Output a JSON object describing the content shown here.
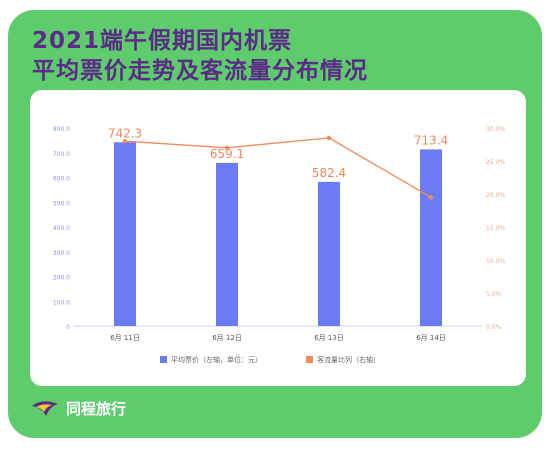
{
  "title_line1": "2021端午假期国内机票",
  "title_line2": "平均票价走势及客流量分布情况",
  "brand": "同程旅行",
  "colors": {
    "frame": "#5ecb6c",
    "title": "#5b2c87",
    "bar": "#6b7bf2",
    "line": "#f08a5d",
    "axis_left": "#8b95e8",
    "axis_right": "#f2a98a"
  },
  "chart_data": {
    "type": "bar",
    "categories": [
      "6月 11日",
      "6月 12日",
      "6月 13日",
      "6月 14日"
    ],
    "series": [
      {
        "name": "平均票价（左轴，单位：元）",
        "type": "bar",
        "axis": "left",
        "values": [
          742.3,
          659.1,
          582.4,
          713.4
        ],
        "data_labels": [
          "742.3",
          "659.1",
          "582.4",
          "713.4"
        ]
      },
      {
        "name": "客流量比列（右轴）",
        "type": "line",
        "axis": "right",
        "values": [
          28.0,
          27.0,
          28.5,
          19.5
        ]
      }
    ],
    "y_left": {
      "ylim": [
        0,
        800
      ],
      "ticks": [
        0,
        100,
        200,
        300,
        400,
        500,
        600,
        700,
        800
      ],
      "tick_labels": [
        "0",
        "100.0",
        "200.0",
        "300.0",
        "400.0",
        "500.0",
        "600.0",
        "700.0",
        "800.0"
      ]
    },
    "y_right": {
      "ylim": [
        0,
        30
      ],
      "ticks": [
        0,
        5,
        10,
        15,
        20,
        25,
        30
      ],
      "tick_labels": [
        "0.0%",
        "5.0%",
        "10.0%",
        "15.0%",
        "20.0%",
        "25.0%",
        "30.0%"
      ]
    },
    "legend_position": "bottom-center",
    "grid": false
  }
}
